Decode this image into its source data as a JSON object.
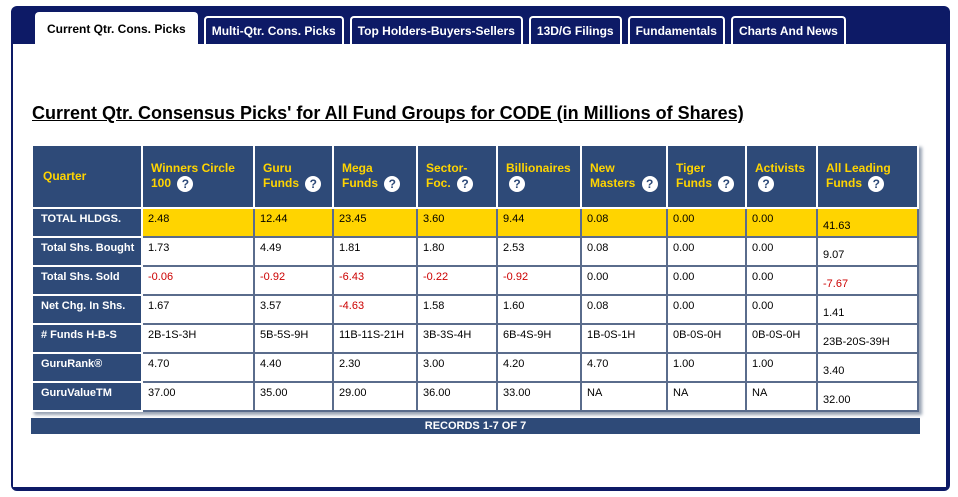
{
  "tabs": [
    {
      "label": "Current Qtr. Cons. Picks",
      "active": true
    },
    {
      "label": "Multi-Qtr. Cons. Picks",
      "active": false
    },
    {
      "label": "Top Holders-Buyers-Sellers",
      "active": false
    },
    {
      "label": "13D/G Filings",
      "active": false
    },
    {
      "label": "Fundamentals",
      "active": false
    },
    {
      "label": "Charts And News",
      "active": false
    }
  ],
  "title": "Current Qtr. Consensus Picks' for All Fund Groups for CODE (in Millions of Shares)",
  "help_glyph": "?",
  "table": {
    "corner": "Quarter",
    "columns": [
      "Winners Circle 100",
      "Guru Funds",
      "Mega Funds",
      "Sector-Foc.",
      "Billionaires",
      "New Masters",
      "Tiger Funds",
      "Activists",
      "All Leading Funds"
    ],
    "rows": [
      {
        "label": "TOTAL HLDGS.",
        "values": [
          "2.48",
          "12.44",
          "23.45",
          "3.60",
          "9.44",
          "0.08",
          "0.00",
          "0.00",
          "41.63"
        ]
      },
      {
        "label": "Total Shs. Bought",
        "values": [
          "1.73",
          "4.49",
          "1.81",
          "1.80",
          "2.53",
          "0.08",
          "0.00",
          "0.00",
          "9.07"
        ]
      },
      {
        "label": "Total Shs. Sold",
        "values": [
          "-0.06",
          "-0.92",
          "-6.43",
          "-0.22",
          "-0.92",
          "0.00",
          "0.00",
          "0.00",
          "-7.67"
        ]
      },
      {
        "label": "Net Chg. In Shs.",
        "values": [
          "1.67",
          "3.57",
          "-4.63",
          "1.58",
          "1.60",
          "0.08",
          "0.00",
          "0.00",
          "1.41"
        ]
      },
      {
        "label": "# Funds H-B-S",
        "values": [
          "2B-1S-3H",
          "5B-5S-9H",
          "11B-11S-21H",
          "3B-3S-4H",
          "6B-4S-9H",
          "1B-0S-1H",
          "0B-0S-0H",
          "0B-0S-0H",
          "23B-20S-39H"
        ]
      },
      {
        "label": "GuruRank®",
        "values": [
          "4.70",
          "4.40",
          "2.30",
          "3.00",
          "4.20",
          "4.70",
          "1.00",
          "1.00",
          "3.40"
        ]
      },
      {
        "label": "GuruValueTM",
        "values": [
          "37.00",
          "35.00",
          "29.00",
          "36.00",
          "33.00",
          "NA",
          "NA",
          "NA",
          "32.00"
        ]
      }
    ]
  },
  "footer": "RECORDS 1-7 OF 7",
  "colors": {
    "navy": "#0d1a66",
    "header_blue": "#2e4a78",
    "highlight": "#ffd400",
    "negative": "#cc0000"
  }
}
